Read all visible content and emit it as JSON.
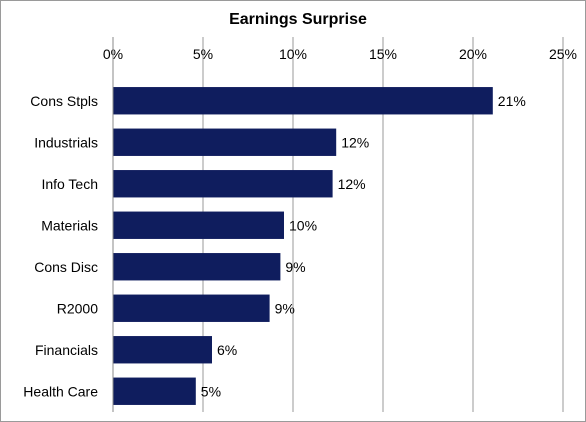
{
  "chart_data": {
    "type": "bar",
    "orientation": "horizontal",
    "title": "Earnings Surprise",
    "categories": [
      "Cons Stpls",
      "Industrials",
      "Info Tech",
      "Materials",
      "Cons Disc",
      "R2000",
      "Financials",
      "Health Care"
    ],
    "values": [
      21.1,
      12.4,
      12.2,
      9.5,
      9.3,
      8.7,
      5.5,
      4.6
    ],
    "data_labels": [
      "21%",
      "12%",
      "12%",
      "10%",
      "9%",
      "9%",
      "6%",
      "5%"
    ],
    "x_ticks": [
      "0%",
      "5%",
      "10%",
      "15%",
      "20%",
      "25%"
    ],
    "xlim": [
      0,
      25
    ],
    "x_axis_position": "top",
    "grid": true,
    "bar_color": "#0f1d5e",
    "legend": "none"
  }
}
